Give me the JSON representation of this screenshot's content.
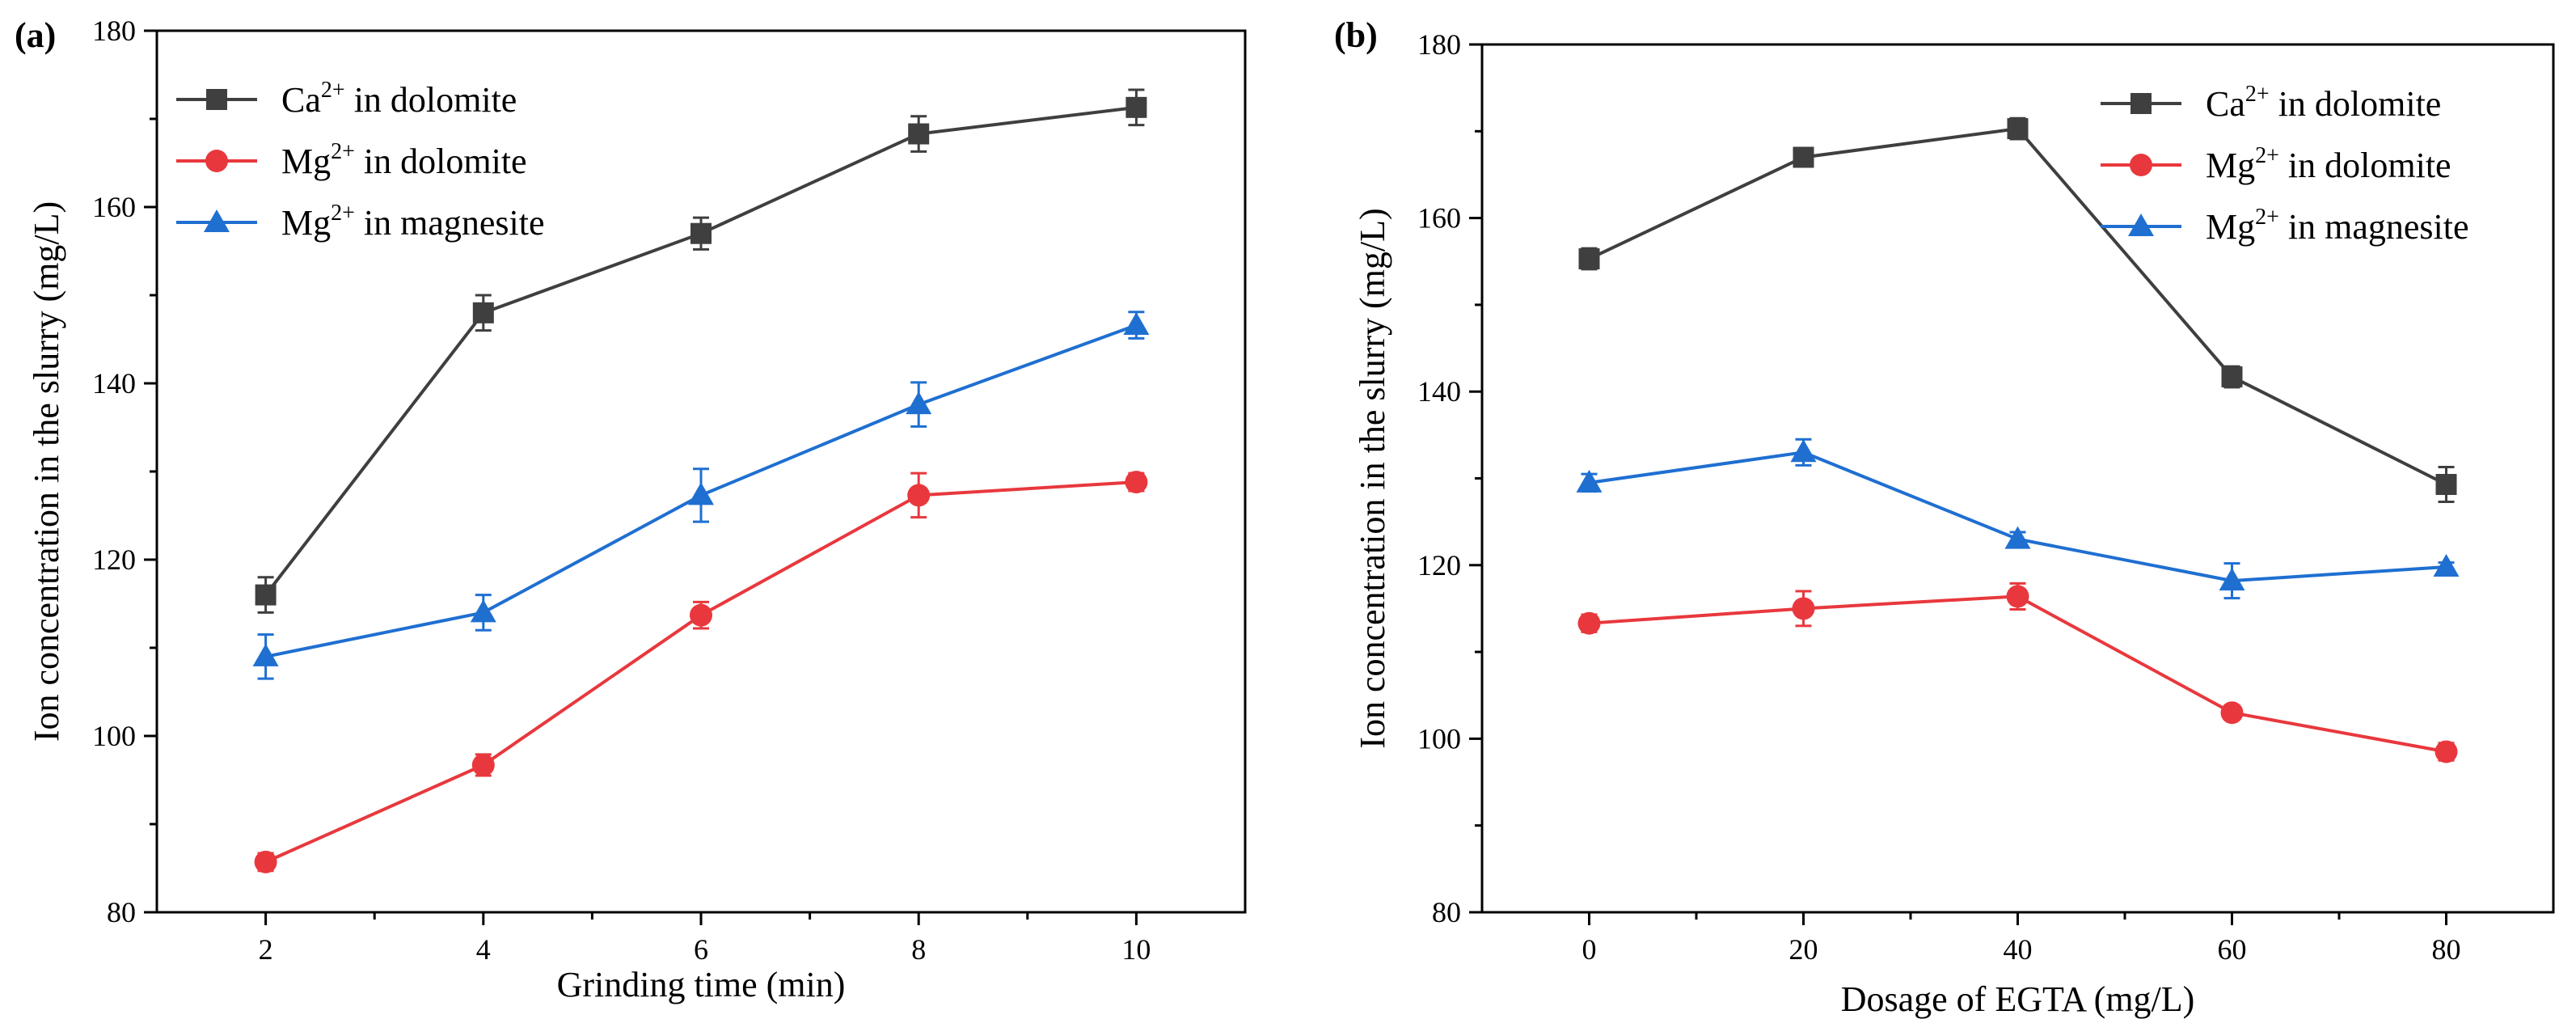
{
  "chart_data": [
    {
      "panel_label": "(a)",
      "type": "line",
      "xlabel": "Grinding time (min)",
      "ylabel": "Ion concentration in the slurry (mg/L)",
      "xlim": [
        1,
        11
      ],
      "ylim": [
        80,
        180
      ],
      "xticks": [
        2,
        4,
        6,
        8,
        10
      ],
      "yticks": [
        80,
        100,
        120,
        140,
        160,
        180
      ],
      "legend_position": "top-left",
      "x": [
        2,
        4,
        6,
        8,
        10
      ],
      "series": [
        {
          "ion": "Ca",
          "charge": "2+",
          "suffix": " in dolomite",
          "color": "#3f3f3f",
          "marker": "square",
          "values": [
            116,
            148,
            157,
            168.3,
            171.3
          ],
          "errors": [
            2,
            2,
            1.8,
            2,
            2
          ]
        },
        {
          "ion": "Mg",
          "charge": "2+",
          "suffix": " in dolomite",
          "color": "#e8383d",
          "marker": "circle",
          "values": [
            85.7,
            96.7,
            113.7,
            127.3,
            128.8
          ],
          "errors": [
            1,
            1.2,
            1.5,
            2.5,
            1
          ]
        },
        {
          "ion": "Mg",
          "charge": "2+",
          "suffix": " in magnesite",
          "color": "#1f6fd1",
          "marker": "triangle",
          "values": [
            109,
            114,
            127.3,
            137.6,
            146.6
          ],
          "errors": [
            2.5,
            2,
            3,
            2.5,
            1.5
          ]
        }
      ]
    },
    {
      "panel_label": "(b)",
      "type": "line",
      "xlabel": "Dosage of EGTA (mg/L)",
      "ylabel": "Ion concentration in the slurry (mg/L)",
      "xlim": [
        -10,
        90
      ],
      "ylim": [
        80,
        180
      ],
      "xticks": [
        0,
        20,
        40,
        60,
        80
      ],
      "yticks": [
        80,
        100,
        120,
        140,
        160,
        180
      ],
      "legend_position": "top-right",
      "x": [
        0,
        20,
        40,
        60,
        80
      ],
      "series": [
        {
          "ion": "Ca",
          "charge": "2+",
          "suffix": " in dolomite",
          "color": "#3f3f3f",
          "marker": "square",
          "values": [
            155.3,
            167,
            170.3,
            141.7,
            129.3
          ],
          "errors": [
            1.2,
            0.5,
            1.2,
            1.2,
            2
          ]
        },
        {
          "ion": "Mg",
          "charge": "2+",
          "suffix": " in dolomite",
          "color": "#e8383d",
          "marker": "circle",
          "values": [
            113.3,
            115,
            116.4,
            103,
            98.5
          ],
          "errors": [
            1,
            2,
            1.5,
            0.5,
            1
          ]
        },
        {
          "ion": "Mg",
          "charge": "2+",
          "suffix": " in magnesite",
          "color": "#1f6fd1",
          "marker": "triangle",
          "values": [
            129.5,
            133,
            123,
            118.2,
            119.8
          ],
          "errors": [
            1,
            1.5,
            0.8,
            2,
            0.5
          ]
        }
      ]
    }
  ]
}
